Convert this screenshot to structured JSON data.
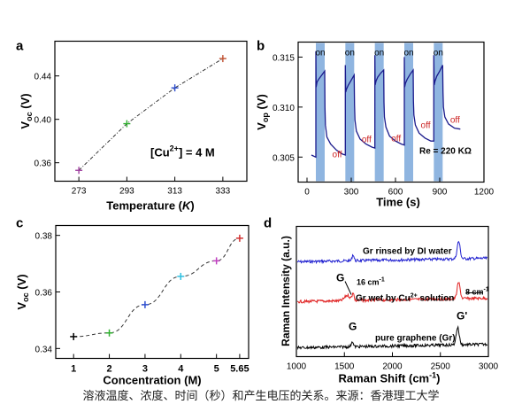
{
  "caption": "溶液温度、浓度、时间（秒）和产生电压的关系。来源：香港理工大学",
  "colors": {
    "axis": "#000000",
    "blue_series": "#1a1a8c",
    "highlight": "#8fb5e0",
    "annot": "#cc2222"
  },
  "chart_data": [
    {
      "panel": "a",
      "type": "scatter",
      "xlabel": "Temperature (K)",
      "ylabel": "Voc (V)",
      "xticks": [
        "273",
        "293",
        "313",
        "333"
      ],
      "yticks": [
        "0.36",
        "0.40",
        "0.44"
      ],
      "xlim": [
        263,
        343
      ],
      "ylim": [
        0.343,
        0.472
      ],
      "x": [
        273,
        293,
        313,
        333
      ],
      "y": [
        0.353,
        0.396,
        0.429,
        0.456
      ],
      "point_colors": [
        "#a040a0",
        "#30b030",
        "#3050d0",
        "#c05030"
      ],
      "annotation": "[Cu2+] = 4 M"
    },
    {
      "panel": "b",
      "type": "line",
      "xlabel": "Time (s)",
      "ylabel": "Vop (V)",
      "xticks": [
        "0",
        "300",
        "600",
        "900",
        "1200"
      ],
      "yticks": [
        "0.305",
        "0.310",
        "0.315"
      ],
      "xlim": [
        -60,
        1200
      ],
      "ylim": [
        0.3025,
        0.3165
      ],
      "on_intervals": [
        [
          60,
          120
        ],
        [
          260,
          320
        ],
        [
          460,
          520
        ],
        [
          660,
          720
        ],
        [
          860,
          920
        ]
      ],
      "on_labels": [
        "on",
        "on",
        "on",
        "on",
        "on"
      ],
      "off_labels": [
        "off",
        "off",
        "off",
        "off",
        "off"
      ],
      "resistance_label": "Re = 220 KΩ",
      "series": [
        {
          "x": [
            30,
            60,
            60,
            62,
            68,
            80,
            100,
            120,
            122,
            125,
            135,
            160,
            200,
            240,
            260,
            260,
            262,
            268,
            280,
            300,
            320,
            322,
            325,
            335,
            360,
            400,
            440,
            460,
            460,
            462,
            468,
            480,
            500,
            520,
            522,
            525,
            535,
            560,
            600,
            640,
            660,
            660,
            662,
            668,
            680,
            700,
            720,
            722,
            725,
            735,
            760,
            800,
            840,
            860,
            860,
            862,
            868,
            880,
            900,
            920,
            922,
            925,
            935,
            960,
            1000,
            1040
          ],
          "y": [
            0.3052,
            0.305,
            0.3156,
            0.312,
            0.3125,
            0.3128,
            0.3132,
            0.3136,
            0.31,
            0.3082,
            0.307,
            0.3063,
            0.3057,
            0.3053,
            0.3052,
            0.3142,
            0.3115,
            0.3118,
            0.3122,
            0.3127,
            0.3132,
            0.3102,
            0.3087,
            0.3076,
            0.3068,
            0.3063,
            0.306,
            0.3059,
            0.3152,
            0.3122,
            0.3126,
            0.313,
            0.3134,
            0.3137,
            0.3105,
            0.309,
            0.308,
            0.3071,
            0.3066,
            0.3063,
            0.3062,
            0.315,
            0.312,
            0.3124,
            0.3128,
            0.3133,
            0.3137,
            0.3106,
            0.3092,
            0.3082,
            0.3074,
            0.3069,
            0.3066,
            0.3066,
            0.3152,
            0.3122,
            0.3126,
            0.3131,
            0.3136,
            0.3142,
            0.3115,
            0.31,
            0.309,
            0.3083,
            0.3079,
            0.3078
          ]
        }
      ]
    },
    {
      "panel": "c",
      "type": "line",
      "xlabel": "Concentration (M)",
      "ylabel": "Voc (V)",
      "xticks": [
        "1",
        "2",
        "3",
        "4",
        "5",
        "5.65"
      ],
      "yticks": [
        "0.34",
        "0.36",
        "0.38"
      ],
      "xlim": [
        0.5,
        5.9
      ],
      "ylim": [
        0.3365,
        0.3835
      ],
      "x": [
        1,
        2,
        3,
        4,
        5,
        5.65
      ],
      "y": [
        0.3442,
        0.3455,
        0.3555,
        0.3655,
        0.371,
        0.379
      ],
      "point_colors": [
        "#000000",
        "#30b030",
        "#3050d0",
        "#30c0e0",
        "#c040c0",
        "#d03030"
      ]
    },
    {
      "panel": "d",
      "type": "line",
      "xlabel": "Raman Shift (cm-1)",
      "ylabel": "Raman Intensity (a.u.)",
      "xticks": [
        "1000",
        "1500",
        "2000",
        "2500",
        "3000"
      ],
      "xlim": [
        1000,
        3000
      ],
      "series": [
        {
          "name": "Gr rinsed by DI water",
          "color": "#2020d0",
          "peaks": [
            [
              1590,
              0.5
            ],
            [
              2690,
              1.4
            ]
          ],
          "annotations": []
        },
        {
          "name": "Gr wet by Cu2+ solution",
          "color": "#e02020",
          "peaks": [
            [
              1590,
              0.7
            ],
            [
              2690,
              1.3
            ]
          ],
          "annotations": [
            "G",
            "16 cm-1",
            "8 cm-1"
          ]
        },
        {
          "name": "pure graphene (Gr)",
          "color": "#000000",
          "peaks": [
            [
              1582,
              0.45
            ],
            [
              2680,
              1.4
            ]
          ],
          "annotations": [
            "G",
            "G'"
          ]
        }
      ]
    }
  ],
  "panel_labels": [
    "a",
    "b",
    "c",
    "d"
  ],
  "texts": {
    "a_xlabel": "Temperature (K)",
    "b_xlabel": "Time (s)",
    "c_xlabel": "Concentration (M)",
    "d_xlabel": "Raman Shift (cm",
    "d_ylabel": "Raman Intensity (a.u.)",
    "a_annot": "[Cu",
    "a_annot_sup": "2+",
    "a_annot_end": "] = 4 M",
    "b_re": "Re = 220 KΩ",
    "d_label_blue": "Gr rinsed by DI water",
    "d_label_red": "Gr wet by Cu",
    "d_label_red_sup": "2+",
    "d_label_red_end": " solution",
    "d_label_black": "pure graphene (Gr)",
    "d_g_red": "G",
    "d_g_black": "G",
    "d_gprime_black": "G'",
    "d_16": "16 cm",
    "d_8": "8 cm",
    "unit_sup": "-1"
  }
}
